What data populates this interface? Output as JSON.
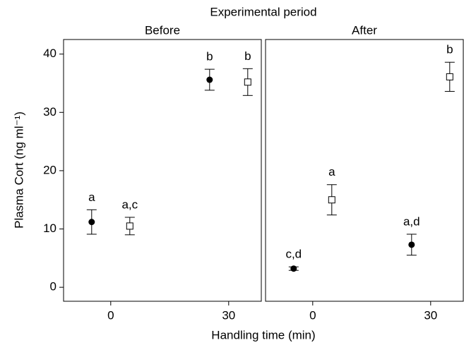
{
  "chart_data": {
    "type": "scatter",
    "title": "Experimental period",
    "x_label": "Handling time (min)",
    "y_label": "Plasma Cort (ng ml⁻¹)",
    "xlim": [
      -12,
      38.3
    ],
    "xticks": [
      0,
      30
    ],
    "ylim": [
      -2.4,
      42.5
    ],
    "yticks": [
      0,
      10,
      20,
      30,
      40
    ],
    "panels": [
      {
        "title": "Before",
        "series": [
          {
            "marker": "circle",
            "color": "#000000",
            "x": [
              0,
              30
            ],
            "values": [
              11.2,
              35.6
            ],
            "errors": [
              2.1,
              1.8
            ],
            "labels": [
              "a",
              "b"
            ]
          },
          {
            "marker": "square",
            "color": "#000000",
            "x": [
              0,
              30
            ],
            "values": [
              10.5,
              35.2
            ],
            "errors": [
              1.5,
              2.3
            ],
            "labels": [
              "a,c",
              "b"
            ]
          }
        ]
      },
      {
        "title": "After",
        "series": [
          {
            "marker": "circle",
            "color": "#000000",
            "x": [
              0,
              30
            ],
            "values": [
              3.2,
              7.3
            ],
            "errors": [
              0.3,
              1.8
            ],
            "labels": [
              "c,d",
              "a,d"
            ]
          },
          {
            "marker": "square",
            "color": "#000000",
            "x": [
              0,
              30
            ],
            "values": [
              15.0,
              36.1
            ],
            "errors": [
              2.6,
              2.5
            ],
            "labels": [
              "a",
              "b"
            ]
          }
        ]
      }
    ]
  }
}
